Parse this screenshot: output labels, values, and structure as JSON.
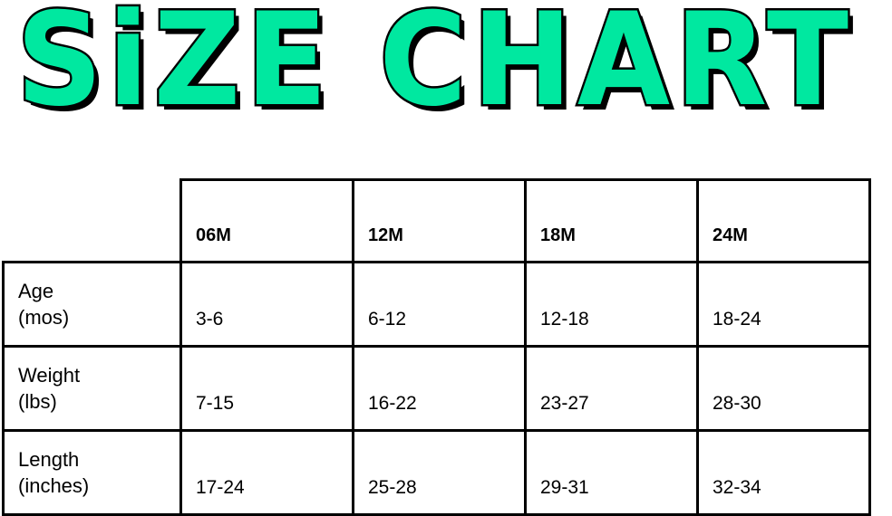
{
  "title": "SiZE CHART",
  "title_color": "#00E8A0",
  "columns": [
    "06M",
    "12M",
    "18M",
    "24M"
  ],
  "rows": [
    {
      "label_line1": "Age",
      "label_line2": "(mos)",
      "values": [
        "3-6",
        "6-12",
        "12-18",
        "18-24"
      ]
    },
    {
      "label_line1": "Weight",
      "label_line2": "(lbs)",
      "values": [
        "7-15",
        "16-22",
        "23-27",
        "28-30"
      ]
    },
    {
      "label_line1": "Length",
      "label_line2": "(inches)",
      "values": [
        "17-24",
        "25-28",
        "29-31",
        "32-34"
      ]
    }
  ]
}
